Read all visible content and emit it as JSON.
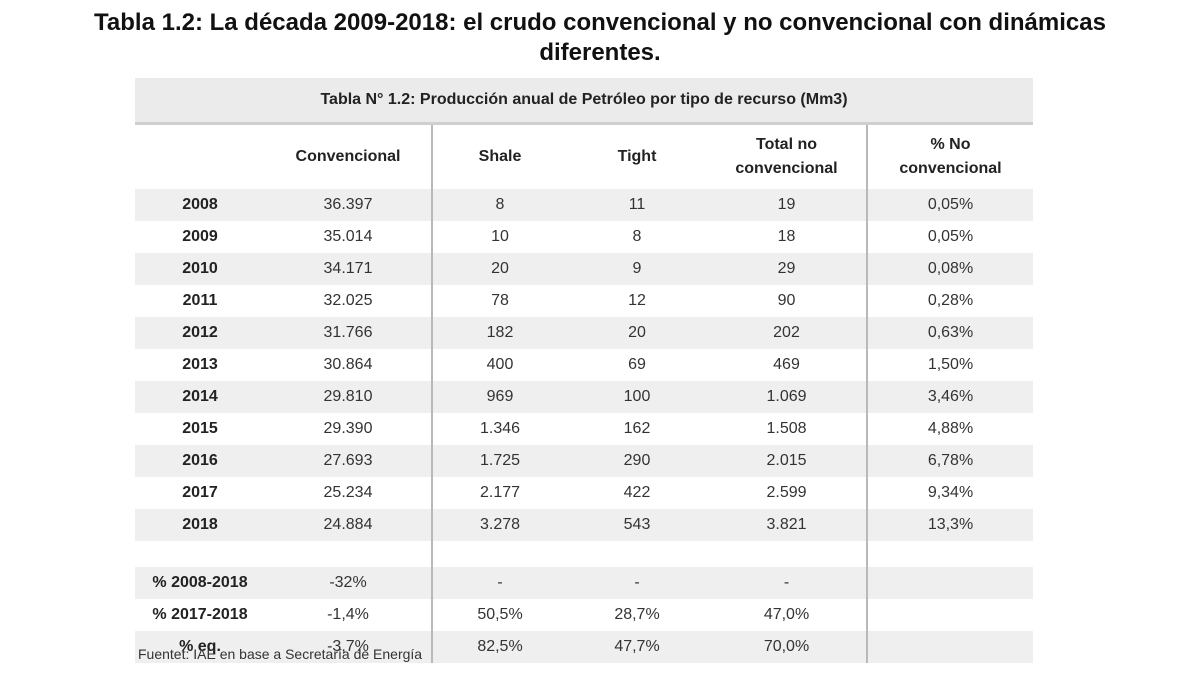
{
  "document": {
    "title_line1": "Tabla 1.2: La década 2009-2018: el crudo convencional y no convencional con dinámicas",
    "title_line2": "diferentes.",
    "source": "Fuentet: IAE en base a Secretaría de Energía"
  },
  "table": {
    "caption": "Tabla N° 1.2: Producción anual de Petróleo por tipo de recurso (Mm3)",
    "headers": {
      "convencional": "Convencional",
      "shale": "Shale",
      "tight": "Tight",
      "total_line1": "Total no",
      "total_line2": "convencional",
      "pct_line1": "% No",
      "pct_line2": "convencional"
    },
    "rows": [
      {
        "label": "2008",
        "convencional": "36.397",
        "shale": "8",
        "tight": "11",
        "total": "19",
        "pct": "0,05%"
      },
      {
        "label": "2009",
        "convencional": "35.014",
        "shale": "10",
        "tight": "8",
        "total": "18",
        "pct": "0,05%"
      },
      {
        "label": "2010",
        "convencional": "34.171",
        "shale": "20",
        "tight": "9",
        "total": "29",
        "pct": "0,08%"
      },
      {
        "label": "2011",
        "convencional": "32.025",
        "shale": "78",
        "tight": "12",
        "total": "90",
        "pct": "0,28%"
      },
      {
        "label": "2012",
        "convencional": "31.766",
        "shale": "182",
        "tight": "20",
        "total": "202",
        "pct": "0,63%"
      },
      {
        "label": "2013",
        "convencional": "30.864",
        "shale": "400",
        "tight": "69",
        "total": "469",
        "pct": "1,50%"
      },
      {
        "label": "2014",
        "convencional": "29.810",
        "shale": "969",
        "tight": "100",
        "total": "1.069",
        "pct": "3,46%"
      },
      {
        "label": "2015",
        "convencional": "29.390",
        "shale": "1.346",
        "tight": "162",
        "total": "1.508",
        "pct": "4,88%"
      },
      {
        "label": "2016",
        "convencional": "27.693",
        "shale": "1.725",
        "tight": "290",
        "total": "2.015",
        "pct": "6,78%"
      },
      {
        "label": "2017",
        "convencional": "25.234",
        "shale": "2.177",
        "tight": "422",
        "total": "2.599",
        "pct": "9,34%"
      },
      {
        "label": "2018",
        "convencional": "24.884",
        "shale": "3.278",
        "tight": "543",
        "total": "3.821",
        "pct": "13,3%"
      }
    ],
    "summary_rows": [
      {
        "label": "% 2008-2018",
        "convencional": "-32%",
        "shale": "-",
        "tight": "-",
        "total": "-",
        "pct": ""
      },
      {
        "label": "% 2017-2018",
        "convencional": "-1,4%",
        "shale": "50,5%",
        "tight": "28,7%",
        "total": "47,0%",
        "pct": ""
      },
      {
        "label": "% eq.",
        "convencional": "-3,7%",
        "shale": "82,5%",
        "tight": "47,7%",
        "total": "70,0%",
        "pct": ""
      }
    ]
  }
}
